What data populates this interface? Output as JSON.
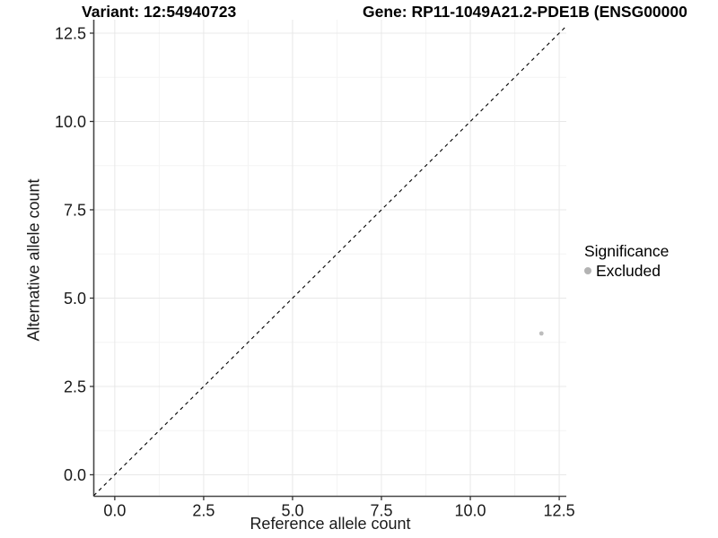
{
  "chart_data": {
    "type": "scatter",
    "title_variant": "Variant: 12:54940723",
    "title_gene": "Gene: RP11-1049A21.2-PDE1B (ENSG00000",
    "xlabel": "Reference allele count",
    "ylabel": "Alternative allele count",
    "xlim": [
      -0.59,
      12.7
    ],
    "ylim": [
      -0.61,
      12.88
    ],
    "x_ticks": [
      0,
      2.5,
      5,
      7.5,
      10,
      12.5
    ],
    "x_tick_labels": [
      "0.0",
      "2.5",
      "5.0",
      "7.5",
      "10.0",
      "12.5"
    ],
    "y_ticks": [
      0,
      2.5,
      5,
      7.5,
      10,
      12.5
    ],
    "y_tick_labels": [
      "0.0",
      "2.5",
      "5.0",
      "7.5",
      "10.0",
      "12.5"
    ],
    "minor_grid_x": [
      1.25,
      3.75,
      6.25,
      8.75,
      11.25
    ],
    "minor_grid_y": [
      1.25,
      3.75,
      6.25,
      8.75,
      11.25
    ],
    "grid": "major+minor",
    "identity_line": {
      "style": "dashed",
      "color": "#000000",
      "from": [
        -0.59,
        -0.59
      ],
      "to": [
        12.7,
        12.7
      ]
    },
    "series": [
      {
        "name": "Excluded",
        "color": "#bdbdbd",
        "point_radius": 2.4,
        "points": [
          [
            12,
            4
          ]
        ]
      }
    ],
    "legend": {
      "title": "Significance",
      "position": "right",
      "entries": [
        {
          "label": "Excluded",
          "color": "#b3b3b3"
        }
      ]
    },
    "colors": {
      "background": "#ffffff",
      "axis_line": "#474747",
      "tick": "#333333",
      "tick_label": "#1a1a1a",
      "grid_major": "#e8e8e8",
      "grid_minor": "#f4f4f4"
    }
  }
}
